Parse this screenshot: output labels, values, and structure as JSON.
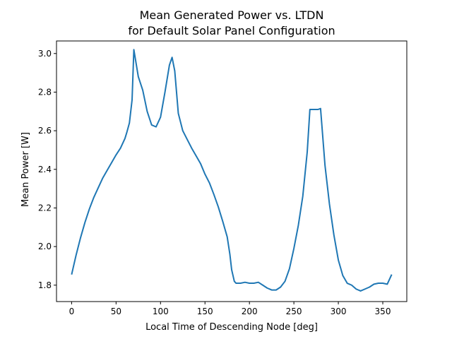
{
  "chart_data": {
    "type": "line",
    "title": "Mean Generated Power vs. LTDN",
    "subtitle": "for Default Solar Panel Configuration",
    "xlabel": "Local Time of Descending Node [deg]",
    "ylabel": "Mean Power [W]",
    "xlim": [
      -17,
      377
    ],
    "ylim": [
      1.715,
      3.065
    ],
    "xticks": [
      0,
      50,
      100,
      150,
      200,
      250,
      300,
      350
    ],
    "yticks": [
      1.8,
      2.0,
      2.2,
      2.4,
      2.6,
      2.8,
      3.0
    ],
    "ytick_labels": [
      "1.8",
      "2.0",
      "2.2",
      "2.4",
      "2.6",
      "2.8",
      "3.0"
    ],
    "grid": false,
    "legend": "none",
    "line_color": "#1f77b4",
    "series": [
      {
        "x": [
          0,
          5,
          10,
          15,
          20,
          25,
          30,
          35,
          40,
          45,
          50,
          55,
          60,
          62,
          65,
          68,
          70,
          75,
          80,
          85,
          90,
          95,
          100,
          105,
          110,
          113,
          116,
          120,
          125,
          130,
          135,
          140,
          145,
          150,
          155,
          160,
          165,
          170,
          175,
          178,
          180,
          183,
          185,
          190,
          195,
          200,
          205,
          210,
          215,
          220,
          225,
          230,
          235,
          240,
          245,
          250,
          255,
          260,
          265,
          268,
          270,
          275,
          277,
          280,
          285,
          290,
          295,
          300,
          305,
          310,
          315,
          320,
          325,
          330,
          335,
          340,
          345,
          350,
          355,
          360
        ],
        "y": [
          1.855,
          1.955,
          2.045,
          2.125,
          2.195,
          2.255,
          2.305,
          2.355,
          2.395,
          2.435,
          2.475,
          2.51,
          2.56,
          2.59,
          2.64,
          2.76,
          3.02,
          2.88,
          2.81,
          2.7,
          2.63,
          2.62,
          2.67,
          2.8,
          2.94,
          2.98,
          2.91,
          2.69,
          2.6,
          2.555,
          2.51,
          2.47,
          2.43,
          2.375,
          2.33,
          2.27,
          2.205,
          2.13,
          2.05,
          1.96,
          1.88,
          1.82,
          1.81,
          1.81,
          1.815,
          1.81,
          1.81,
          1.815,
          1.8,
          1.785,
          1.775,
          1.775,
          1.79,
          1.82,
          1.885,
          1.99,
          2.11,
          2.26,
          2.49,
          2.71,
          2.71,
          2.71,
          2.71,
          2.715,
          2.42,
          2.22,
          2.06,
          1.93,
          1.85,
          1.81,
          1.8,
          1.78,
          1.77,
          1.78,
          1.79,
          1.805,
          1.81,
          1.81,
          1.805,
          1.855
        ]
      }
    ]
  }
}
